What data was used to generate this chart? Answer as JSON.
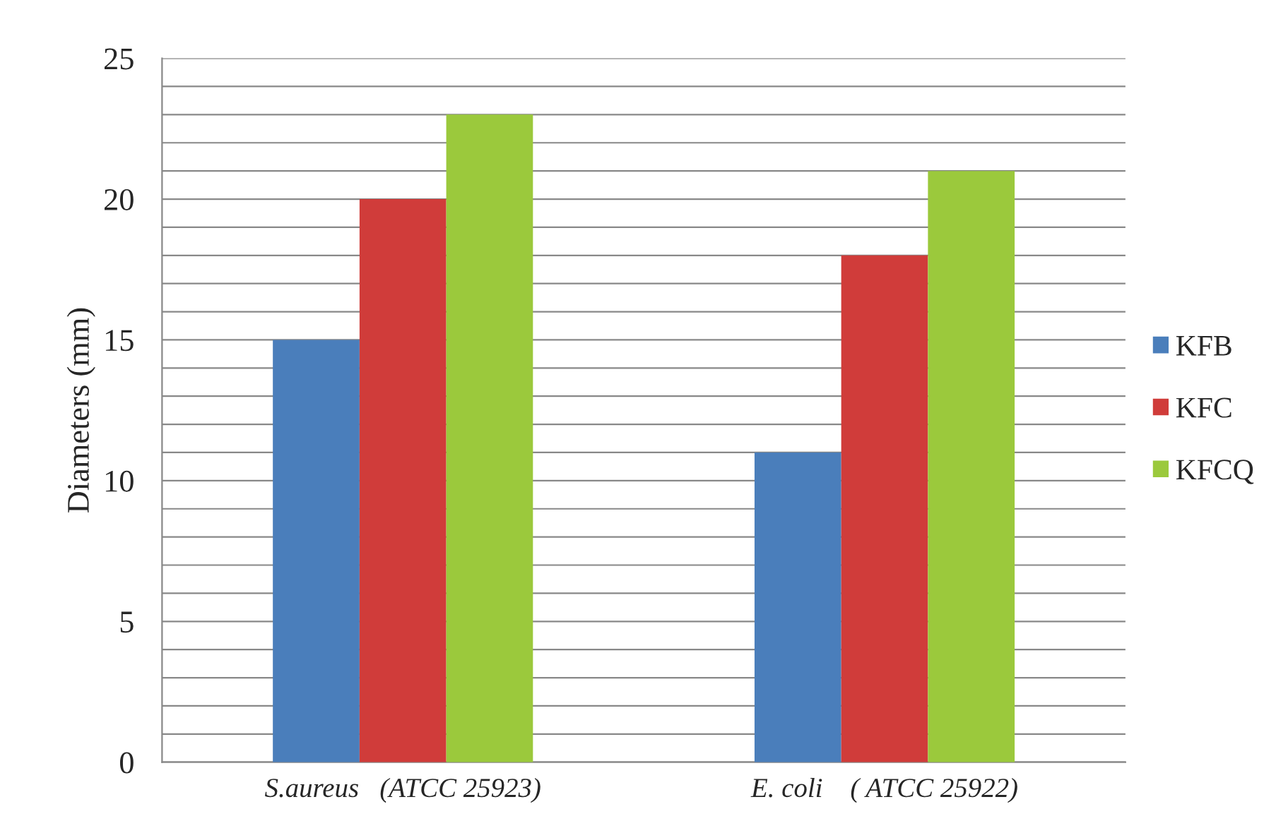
{
  "chart_data": {
    "type": "bar",
    "ylabel": "Diameters (mm)",
    "categories": [
      "S.aureus   (ATCC 25923)",
      "E. coli    ( ATCC 25922)"
    ],
    "series": [
      {
        "name": "KFB",
        "color": "#4a7ebb",
        "values": [
          15,
          11
        ]
      },
      {
        "name": "KFC",
        "color": "#d03c3a",
        "values": [
          20,
          18
        ]
      },
      {
        "name": "KFCQ",
        "color": "#9bc93c",
        "values": [
          23,
          21
        ]
      }
    ],
    "ylim": [
      0,
      25
    ],
    "yticks": [
      0,
      {
        "value": 1,
        "label": null
      },
      {
        "value": 2,
        "label": null
      },
      {
        "value": 3,
        "label": null
      },
      {
        "value": 4,
        "label": null
      },
      5,
      {
        "value": 6,
        "label": null
      },
      {
        "value": 7,
        "label": null
      },
      {
        "value": 8,
        "label": null
      },
      {
        "value": 9,
        "label": null
      },
      10,
      {
        "value": 11,
        "label": null
      },
      {
        "value": 12,
        "label": null
      },
      {
        "value": 13,
        "label": null
      },
      {
        "value": 14,
        "label": null
      },
      15,
      {
        "value": 16,
        "label": null
      },
      {
        "value": 17,
        "label": null
      },
      {
        "value": 18,
        "label": null
      },
      {
        "value": 19,
        "label": null
      },
      20,
      {
        "value": 21,
        "label": null
      },
      {
        "value": 22,
        "label": null
      },
      {
        "value": 23,
        "label": null
      },
      {
        "value": 24,
        "label": null
      },
      25
    ],
    "grid": "y",
    "legend": "right"
  }
}
